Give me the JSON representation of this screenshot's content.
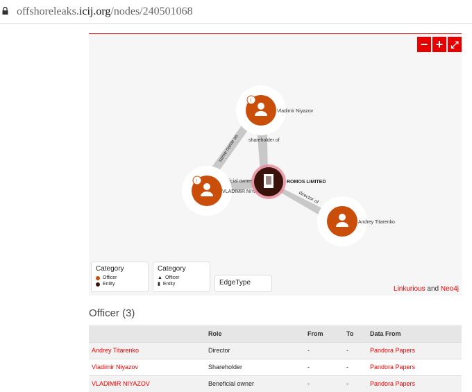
{
  "browser": {
    "url_prefix": "offshoreleaks.",
    "url_domain": "icij.org",
    "url_path": "/nodes/240501068"
  },
  "graph": {
    "zoom_out": "−",
    "zoom_in": "+",
    "fullscreen": "⤢",
    "nodes": [
      {
        "label": "Vladimir Niyazov",
        "type": "Officer",
        "badge": "!"
      },
      {
        "label": "VLADIMIR NIYAZOV",
        "type": "Officer",
        "badge": "!"
      },
      {
        "label": "ROMOS LIMITED",
        "type": "Entity"
      },
      {
        "label": "Andrey Titarenko",
        "type": "Officer"
      }
    ],
    "edges": [
      "shareholder of",
      "same name as",
      "beneficial owner of",
      "director of"
    ],
    "colors": {
      "officer": "#c84e0a",
      "entity": "#3a120c",
      "edge": "#c8c8c8",
      "accent": "#e60000"
    },
    "legend_color": {
      "title": "Category",
      "items": [
        "Officer",
        "Entity"
      ]
    },
    "legend_icon": {
      "title": "Category",
      "items": [
        "Officer",
        "Entity"
      ]
    },
    "legend_edge": {
      "title": "EdgeType"
    },
    "credits": {
      "a": "Linkurious",
      "and": " and ",
      "b": "Neo4j"
    }
  },
  "officers": {
    "title": "Officer (3)",
    "columns": [
      "",
      "Role",
      "From",
      "To",
      "Data From"
    ],
    "rows": [
      {
        "name": "Andrey Titarenko",
        "role": "Director",
        "from": "-",
        "to": "-",
        "source": "Pandora Papers"
      },
      {
        "name": "Vladimir Niyazov",
        "role": "Shareholder",
        "from": "-",
        "to": "-",
        "source": "Pandora Papers"
      },
      {
        "name": "VLADIMIR NIYAZOV",
        "role": "Beneficial owner",
        "from": "-",
        "to": "-",
        "source": "Pandora Papers"
      }
    ]
  }
}
